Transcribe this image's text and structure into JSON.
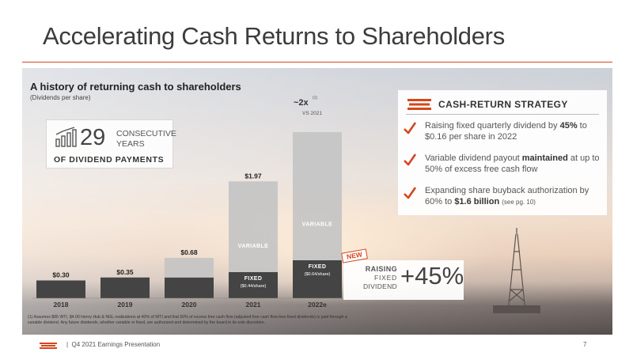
{
  "slide": {
    "title": "Accelerating Cash Returns to Shareholders",
    "footer_sep": "|",
    "footer": "Q4 2021 Earnings Presentation",
    "page": "7"
  },
  "colors": {
    "accent": "#d5461d",
    "fixed": "#444444",
    "variable": "#c4c4c4"
  },
  "years_callout": {
    "number": "29",
    "word1": "CONSECUTIVE",
    "word2": "YEARS",
    "caption": "OF DIVIDEND PAYMENTS",
    "icon": "bar-chart-growth-icon"
  },
  "chart_data": {
    "type": "bar",
    "stacked": true,
    "title": "A history of returning cash to shareholders",
    "subtitle": "(Dividends per share)",
    "categories": [
      "2018",
      "2019",
      "2020",
      "2021",
      "2022e"
    ],
    "totals": [
      0.3,
      0.35,
      0.68,
      1.97,
      2.8
    ],
    "value_labels": [
      "$0.30",
      "$0.35",
      "$0.68",
      "$1.97",
      ""
    ],
    "series": [
      {
        "values": [
          0.3,
          0.35,
          0.35,
          0.44,
          0.64
        ],
        "color": "#444444"
      },
      {
        "values": [
          0,
          0,
          0.33,
          1.53,
          2.16
        ],
        "color": "#c4c4c4"
      }
    ],
    "segment_labels": [
      {
        "bar": 3,
        "fixed": "FIXED",
        "fixed_sub": "($0.44/share)",
        "variable": "VARIABLE"
      },
      {
        "bar": 4,
        "fixed": "FIXED",
        "fixed_sub": "($0.64/share)",
        "variable": "VARIABLE"
      }
    ],
    "annotation": {
      "text": "~2x",
      "sup": "(1)",
      "sub": "VS 2021"
    },
    "ylim": [
      0,
      3.0
    ],
    "grid": false
  },
  "strategy": {
    "icon": "cash-stack-icon",
    "title": "CASH-RETURN STRATEGY",
    "items": [
      {
        "pre": "Raising fixed quarterly dividend by ",
        "bold": "45%",
        "post": " to $0.16 per share in 2022",
        "note": ""
      },
      {
        "pre": "Variable dividend payout ",
        "bold": "maintained",
        "post": " at up to 50% of excess free cash flow",
        "note": ""
      },
      {
        "pre": "Expanding share buyback authorization by 60% to ",
        "bold": "$1.6 billion",
        "post": " ",
        "note": "(see pg. 10)"
      }
    ]
  },
  "raise": {
    "badge": "NEW",
    "l1": "RAISING",
    "l2": "FIXED",
    "l3": "DIVIDEND",
    "value": "+45%"
  },
  "footnote": "(1) Assumes $85 WTI, $4.00 Henry Hub & NGL realizations at 40% of WTI and that 50% of excess free cash flow (adjusted free cash flow less fixed dividends) is paid through a variable dividend. Any future dividends, whether variable or fixed, are authorized and determined by the board in its sole discretion."
}
